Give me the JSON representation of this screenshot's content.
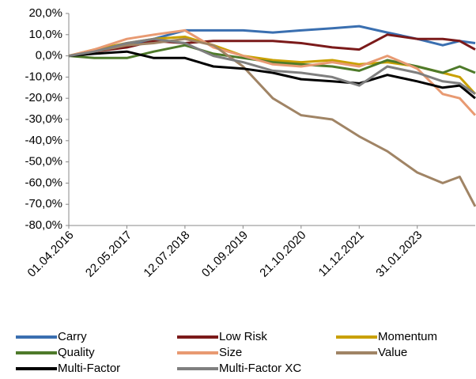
{
  "chart_data": {
    "type": "line",
    "x": [
      "01.04.2016",
      "01.10.2016",
      "22.05.2017",
      "01.12.2017",
      "12.07.2018",
      "01.02.2019",
      "01.09.2019",
      "01.04.2020",
      "21.10.2020",
      "01.06.2021",
      "11.12.2021",
      "01.07.2022",
      "31.01.2023",
      "01.08.2023",
      "01.12.2023",
      "21.03.2024"
    ],
    "xlim": [
      "01.04.2016",
      "21.03.2024"
    ],
    "xticks": [
      "01.04.2016",
      "22.05.2017",
      "12.07.2018",
      "01.09.2019",
      "21.10.2020",
      "11.12.2021",
      "31.01.2023"
    ],
    "ylim": [
      -80,
      20
    ],
    "yticks": [
      {
        "value": -80,
        "label": "-80,0%"
      },
      {
        "value": -70,
        "label": "-70,0%"
      },
      {
        "value": -60,
        "label": "-60,0%"
      },
      {
        "value": -50,
        "label": "-50,0%"
      },
      {
        "value": -40,
        "label": "-40,0%"
      },
      {
        "value": -30,
        "label": "-30,0%"
      },
      {
        "value": -20,
        "label": "-20,0%"
      },
      {
        "value": -10,
        "label": "-10,0%"
      },
      {
        "value": 0,
        "label": "0,0%"
      },
      {
        "value": 10,
        "label": "10,0%"
      },
      {
        "value": 20,
        "label": "20,0%"
      }
    ],
    "grid": false,
    "series": [
      {
        "name": "Carry",
        "color": "#3a6fb0",
        "values": [
          0,
          2,
          5,
          8,
          12,
          12,
          12,
          11,
          12,
          13,
          14,
          11,
          8,
          5,
          7,
          6
        ]
      },
      {
        "name": "Low Risk",
        "color": "#7b1a1a",
        "values": [
          0,
          2,
          4,
          7,
          6,
          7,
          7,
          7,
          6,
          4,
          3,
          10,
          8,
          8,
          7,
          3
        ]
      },
      {
        "name": "Momentum",
        "color": "#c9a000",
        "values": [
          0,
          3,
          6,
          8,
          9,
          5,
          0,
          -2,
          -3,
          -2,
          -4,
          -3,
          -5,
          -8,
          -10,
          -18
        ]
      },
      {
        "name": "Quality",
        "color": "#4e7a2a",
        "values": [
          0,
          -1,
          -1,
          2,
          5,
          1,
          -1,
          -3,
          -4,
          -5,
          -7,
          -2,
          -5,
          -8,
          -5,
          -8
        ]
      },
      {
        "name": "Size",
        "color": "#e89a72",
        "values": [
          0,
          3,
          8,
          10,
          12,
          4,
          0,
          -4,
          -5,
          -3,
          -5,
          0,
          -6,
          -18,
          -20,
          -28
        ]
      },
      {
        "name": "Value",
        "color": "#a08465",
        "values": [
          0,
          2,
          5,
          6,
          8,
          5,
          -5,
          -20,
          -28,
          -30,
          -38,
          -45,
          -55,
          -60,
          -57,
          -71
        ]
      },
      {
        "name": "Multi-Factor",
        "color": "#000000",
        "values": [
          0,
          1,
          2,
          -1,
          -1,
          -5,
          -6,
          -8,
          -11,
          -12,
          -13,
          -9,
          -12,
          -15,
          -14,
          -20
        ]
      },
      {
        "name": "Multi-Factor XC",
        "color": "#7f7f7f",
        "values": [
          0,
          2,
          6,
          8,
          6,
          0,
          -3,
          -7,
          -8,
          -10,
          -14,
          -5,
          -8,
          -12,
          -13,
          -18
        ]
      }
    ]
  }
}
